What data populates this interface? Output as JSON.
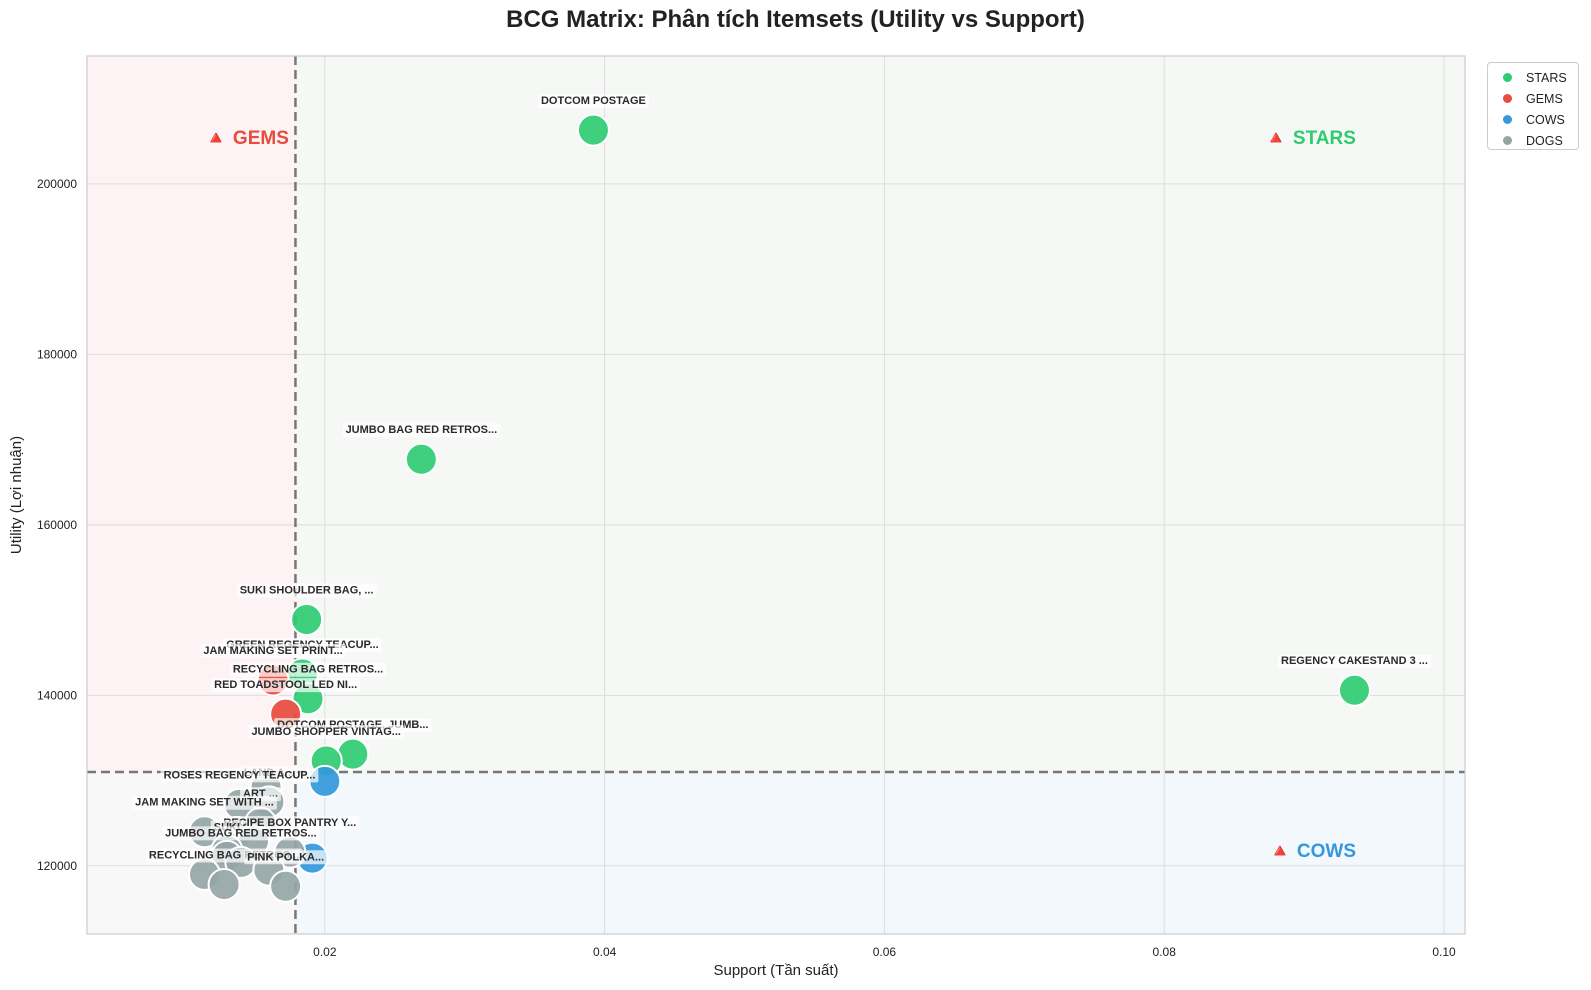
{
  "chart_data": {
    "type": "scatter",
    "title": "BCG Matrix: Phân tích Itemsets (Utility vs Support)",
    "xlabel": "Support (Tần suất)",
    "ylabel": "Utility (Lợi nhuận)",
    "xlim": [
      0.003,
      0.1015
    ],
    "ylim": [
      112000,
      215000
    ],
    "xticks": [
      "0.02",
      "0.04",
      "0.06",
      "0.08",
      "0.10"
    ],
    "xtick_values": [
      0.02,
      0.04,
      0.06,
      0.08,
      0.1
    ],
    "yticks": [
      "120000",
      "140000",
      "160000",
      "180000",
      "200000"
    ],
    "ytick_values": [
      120000,
      140000,
      160000,
      180000,
      200000
    ],
    "grid": true,
    "thresholds": {
      "support": 0.0179,
      "utility": 131000
    },
    "quadrants": {
      "gems": {
        "label": "🔺 GEMS",
        "color": "#e74c3c",
        "shade": "#fdf2f4"
      },
      "stars": {
        "label": "🔺 STARS",
        "color": "#2ecc71",
        "shade": "#f6f8f6"
      },
      "cows": {
        "label": "🔺 COWS",
        "color": "#3498db",
        "shade": "#f3f8fc"
      },
      "dogs": {
        "label": "",
        "color": "#95a5a6",
        "shade": "#f8f8f8"
      }
    },
    "legend": {
      "position": "outside-top-right",
      "entries": [
        {
          "name": "STARS",
          "color": "#2ecc71"
        },
        {
          "name": "GEMS",
          "color": "#e74c3c"
        },
        {
          "name": "COWS",
          "color": "#3498db"
        },
        {
          "name": "DOGS",
          "color": "#95a5a6"
        }
      ]
    },
    "series": [
      {
        "name": "STARS",
        "color": "#2ecc71",
        "points": [
          {
            "x": 0.0392,
            "y": 206300,
            "label": "DOTCOM POSTAGE"
          },
          {
            "x": 0.0269,
            "y": 167700,
            "label": "JUMBO BAG RED RETROS..."
          },
          {
            "x": 0.0936,
            "y": 140600,
            "label": "REGENCY CAKESTAND 3 ..."
          },
          {
            "x": 0.0187,
            "y": 148900,
            "label": "SUKI  SHOULDER BAG, ..."
          },
          {
            "x": 0.0184,
            "y": 142500,
            "label": "GREEN REGENCY TEACUP..."
          },
          {
            "x": 0.0188,
            "y": 139600,
            "label": "RECYCLING BAG RETROS..."
          },
          {
            "x": 0.022,
            "y": 133100,
            "label": "DOTCOM POSTAGE, JUMB..."
          },
          {
            "x": 0.0201,
            "y": 132300,
            "label": "JUMBO SHOPPER VINTAG..."
          }
        ]
      },
      {
        "name": "GEMS",
        "color": "#e74c3c",
        "points": [
          {
            "x": 0.0163,
            "y": 141800,
            "label": "JAM MAKING SET PRINT..."
          },
          {
            "x": 0.0172,
            "y": 137800,
            "label": "RED TOADSTOOL LED NI..."
          }
        ]
      },
      {
        "name": "COWS",
        "color": "#3498db",
        "points": [
          {
            "x": 0.02,
            "y": 129900,
            "label": ""
          },
          {
            "x": 0.0191,
            "y": 120900,
            "label": ""
          }
        ]
      },
      {
        "name": "DOGS",
        "color": "#95a5a6",
        "points": [
          {
            "x": 0.0158,
            "y": 129200,
            "label": ""
          },
          {
            "x": 0.016,
            "y": 127500,
            "label": "LAND A..."
          },
          {
            "x": 0.0139,
            "y": 127200,
            "label": "ROSES REGENCY TEACUP..."
          },
          {
            "x": 0.0154,
            "y": 125000,
            "label": "ART ..."
          },
          {
            "x": 0.0114,
            "y": 124000,
            "label": "JAM MAKING SET WITH ..."
          },
          {
            "x": 0.0137,
            "y": 123900,
            "label": ""
          },
          {
            "x": 0.0149,
            "y": 122900,
            "label": ""
          },
          {
            "x": 0.013,
            "y": 121800,
            "label": ""
          },
          {
            "x": 0.0175,
            "y": 121600,
            "label": "RECIPE BOX PANTRY Y..."
          },
          {
            "x": 0.013,
            "y": 121100,
            "label": "SUKI"
          },
          {
            "x": 0.014,
            "y": 120400,
            "label": "JUMBO BAG RED RETROS..."
          },
          {
            "x": 0.016,
            "y": 119500,
            "label": ""
          },
          {
            "x": 0.0114,
            "y": 119000,
            "label": ""
          },
          {
            "x": 0.0128,
            "y": 117800,
            "label": "RECYCLING BAG RETROS..."
          },
          {
            "x": 0.0172,
            "y": 117600,
            "label": "PINK POLKA..."
          }
        ]
      }
    ]
  }
}
